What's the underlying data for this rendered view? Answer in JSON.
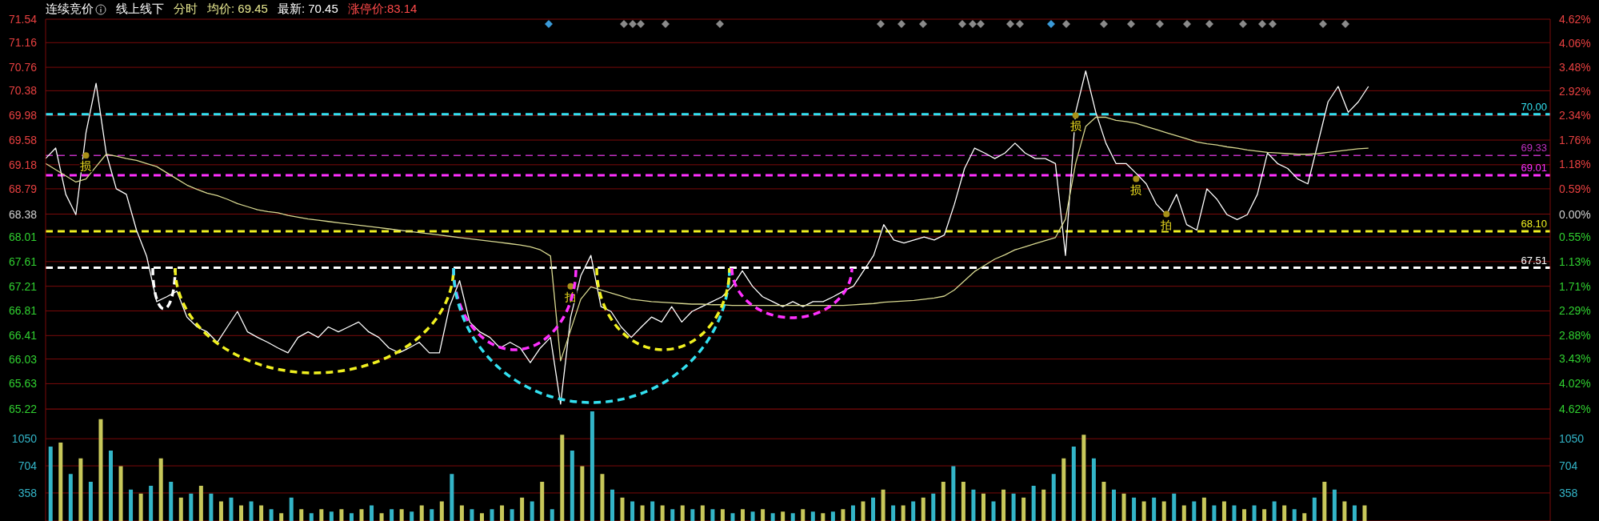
{
  "chart_data": [
    {
      "type": "line",
      "title": "连续竞价",
      "annotations": [
        "线上线下",
        "分时",
        "均价: 69.45",
        "最新: 70.45",
        "涨停价:83.14",
        {
          "text": "损",
          "y": 69.33
        },
        {
          "text": "拍",
          "y": 67.21
        },
        {
          "text": "损",
          "y": 69.98
        },
        {
          "text": "损",
          "y": 68.95
        },
        {
          "text": "拍",
          "y": 68.38
        }
      ],
      "categories": [
        null,
        null,
        null,
        null,
        null,
        null,
        null,
        null,
        null,
        null,
        null,
        null,
        null,
        null,
        null,
        null,
        null,
        null,
        null,
        null,
        null,
        null,
        null,
        null,
        null,
        null,
        null,
        null,
        null,
        null,
        null,
        null,
        null,
        null,
        null,
        null,
        null,
        null,
        null,
        null,
        null,
        null,
        null,
        null,
        null,
        null,
        null,
        null,
        null,
        null,
        null,
        null,
        null,
        null,
        null,
        null,
        null,
        null,
        null,
        null,
        null,
        null,
        null,
        null,
        null,
        null,
        null,
        null,
        null,
        null,
        null,
        null,
        null,
        null,
        null,
        null,
        null,
        null,
        null,
        null,
        null,
        null,
        null,
        null,
        null,
        null,
        null,
        null,
        null,
        null,
        null,
        null,
        null,
        null,
        null,
        null,
        null,
        null,
        null,
        null,
        null,
        null,
        null,
        null,
        null,
        null,
        null,
        null,
        null,
        null,
        null,
        null,
        null,
        null,
        null,
        null,
        null,
        null,
        null,
        null,
        null,
        null,
        null,
        null,
        null,
        null,
        null,
        null,
        null,
        null,
        null,
        null,
        null,
        null,
        null,
        null,
        null,
        null,
        null,
        null,
        null,
        null,
        null,
        null,
        null,
        null,
        null,
        null,
        null,
        null
      ],
      "series": [
        {
          "color": "#ffffff",
          "values": [
            69.28,
            69.45,
            68.7,
            68.37,
            69.7,
            70.5,
            69.37,
            68.79,
            68.7,
            68.12,
            67.7,
            66.96,
            67.04,
            67.13,
            66.71,
            66.55,
            66.47,
            66.3,
            66.55,
            66.8,
            66.47,
            66.38,
            66.3,
            66.21,
            66.13,
            66.38,
            66.47,
            66.38,
            66.55,
            66.47,
            66.55,
            66.63,
            66.47,
            66.38,
            66.21,
            66.13,
            66.21,
            66.3,
            66.13,
            66.13,
            66.88,
            67.3,
            66.63,
            66.47,
            66.38,
            66.21,
            66.3,
            66.21,
            65.97,
            66.21,
            66.38,
            65.3,
            66.71,
            67.38,
            67.71,
            66.88,
            66.8,
            66.55,
            66.38,
            66.55,
            66.71,
            66.63,
            66.88,
            66.63,
            66.8,
            66.88,
            66.96,
            67.04,
            67.21,
            67.46,
            67.21,
            67.04,
            66.96,
            66.88,
            66.96,
            66.88,
            66.96,
            66.96,
            67.04,
            67.13,
            67.21,
            67.46,
            67.71,
            68.21,
            67.96,
            67.91,
            67.96,
            68.01,
            67.96,
            68.04,
            68.54,
            69.12,
            69.45,
            69.37,
            69.28,
            69.37,
            69.53,
            69.37,
            69.28,
            69.28,
            69.2,
            67.71,
            70.03,
            70.7,
            70.03,
            69.53,
            69.2,
            69.2,
            69.04,
            68.87,
            68.54,
            68.37,
            68.7,
            68.21,
            68.12,
            68.79,
            68.62,
            68.37,
            68.29,
            68.37,
            68.7,
            69.37,
            69.2,
            69.12,
            68.95,
            68.87,
            69.53,
            70.2,
            70.45,
            70.03,
            70.2,
            70.45,
            null,
            null,
            null,
            null,
            null,
            null,
            null,
            null,
            null,
            null,
            null,
            null,
            null,
            null,
            null,
            null,
            null,
            null
          ]
        },
        {
          "color": "#d8d890",
          "values": [
            69.2,
            69.1,
            69.0,
            68.9,
            68.95,
            69.15,
            69.35,
            69.32,
            69.28,
            69.25,
            69.2,
            69.15,
            69.05,
            68.95,
            68.85,
            68.78,
            68.72,
            68.68,
            68.62,
            68.55,
            68.5,
            68.45,
            68.42,
            68.4,
            68.36,
            68.33,
            68.3,
            68.28,
            68.26,
            68.24,
            68.22,
            68.2,
            68.18,
            68.16,
            68.14,
            68.12,
            68.1,
            68.08,
            68.06,
            68.04,
            68.02,
            68.0,
            67.98,
            67.96,
            67.94,
            67.92,
            67.9,
            67.88,
            67.85,
            67.8,
            67.7,
            66.0,
            66.5,
            67.0,
            67.2,
            67.15,
            67.1,
            67.05,
            67.0,
            66.98,
            66.96,
            66.95,
            66.94,
            66.93,
            66.92,
            66.92,
            66.91,
            66.91,
            66.9,
            66.9,
            66.9,
            66.9,
            66.9,
            66.9,
            66.9,
            66.9,
            66.9,
            66.9,
            66.9,
            66.9,
            66.91,
            66.92,
            66.93,
            66.95,
            66.96,
            66.97,
            66.98,
            67.0,
            67.02,
            67.05,
            67.15,
            67.3,
            67.45,
            67.55,
            67.65,
            67.72,
            67.8,
            67.85,
            67.9,
            67.95,
            68.0,
            68.3,
            69.2,
            69.8,
            69.95,
            69.95,
            69.9,
            69.88,
            69.85,
            69.8,
            69.75,
            69.7,
            69.65,
            69.6,
            69.55,
            69.52,
            69.5,
            69.47,
            69.45,
            69.42,
            69.4,
            69.38,
            69.37,
            69.36,
            69.35,
            69.35,
            69.36,
            69.38,
            69.4,
            69.42,
            69.44,
            69.45,
            null,
            null,
            null,
            null,
            null,
            null,
            null,
            null,
            null,
            null,
            null,
            null,
            null,
            null,
            null,
            null,
            null,
            null
          ]
        }
      ],
      "ylim": [
        65.22,
        71.54
      ],
      "yticks": [
        65.22,
        65.63,
        66.03,
        66.41,
        66.81,
        67.21,
        67.61,
        68.01,
        68.38,
        68.79,
        69.18,
        69.58,
        69.98,
        70.38,
        70.76,
        71.16,
        71.54
      ],
      "y2lim": [
        -4.62,
        4.62
      ],
      "y2ticks": [
        {
          "value": -4.62,
          "label": "4.62%"
        },
        {
          "value": -4.02,
          "label": "4.02%"
        },
        {
          "value": -3.43,
          "label": "3.43%"
        },
        {
          "value": -2.88,
          "label": "2.88%"
        },
        {
          "value": -2.29,
          "label": "2.29%"
        },
        {
          "value": -1.71,
          "label": "1.71%"
        },
        {
          "value": -1.13,
          "label": "1.13%"
        },
        {
          "value": -0.55,
          "label": "0.55%"
        },
        {
          "value": 0,
          "label": "0.00%"
        },
        {
          "value": 0.59,
          "label": "0.59%"
        },
        {
          "value": 1.18,
          "label": "1.18%"
        },
        {
          "value": 1.76,
          "label": "1.76%"
        },
        {
          "value": 2.34,
          "label": "2.34%"
        },
        {
          "value": 2.92,
          "label": "2.92%"
        },
        {
          "value": 3.48,
          "label": "3.48%"
        },
        {
          "value": 4.06,
          "label": "4.06%"
        },
        {
          "value": 4.62,
          "label": "4.62%"
        }
      ],
      "ref_lines": [
        {
          "axis": "y",
          "value": 70.0,
          "label": "70.00",
          "color": "#33e0f0",
          "line_style": "dashed"
        },
        {
          "axis": "y",
          "value": 69.33,
          "label": "69.33",
          "color": "#c030c0",
          "line_style": "dashed"
        },
        {
          "axis": "y",
          "value": 69.01,
          "label": "69.01",
          "color": "#ff30ff",
          "line_style": "dashed"
        },
        {
          "axis": "y",
          "value": 68.1,
          "label": "68.10",
          "color": "#f0f020",
          "line_style": "dashed"
        },
        {
          "axis": "y",
          "value": 67.51,
          "label": "67.51",
          "color": "#ffffff",
          "line_style": "dashed"
        }
      ],
      "grid": "y"
    },
    {
      "type": "bar",
      "categories": [
        null,
        null,
        null,
        null,
        null,
        null,
        null,
        null,
        null,
        null,
        null,
        null,
        null,
        null,
        null,
        null,
        null,
        null,
        null,
        null,
        null,
        null,
        null,
        null,
        null,
        null,
        null,
        null,
        null,
        null,
        null,
        null,
        null,
        null,
        null,
        null,
        null,
        null,
        null,
        null,
        null,
        null,
        null,
        null,
        null,
        null,
        null,
        null,
        null,
        null,
        null,
        null,
        null,
        null,
        null,
        null,
        null,
        null,
        null,
        null,
        null,
        null,
        null,
        null,
        null,
        null,
        null,
        null,
        null,
        null,
        null,
        null,
        null,
        null,
        null,
        null,
        null,
        null,
        null,
        null,
        null,
        null,
        null,
        null,
        null,
        null,
        null,
        null,
        null,
        null,
        null,
        null,
        null,
        null,
        null,
        null,
        null,
        null,
        null,
        null,
        null,
        null,
        null,
        null,
        null,
        null,
        null,
        null,
        null,
        null,
        null,
        null,
        null,
        null,
        null,
        null,
        null,
        null,
        null,
        null,
        null,
        null,
        null,
        null,
        null,
        null,
        null,
        null,
        null,
        null,
        null,
        null,
        null,
        null,
        null,
        null,
        null,
        null,
        null,
        null,
        null,
        null,
        null,
        null,
        null,
        null,
        null,
        null,
        null,
        null
      ],
      "values": [
        950,
        1000,
        600,
        800,
        500,
        1300,
        900,
        700,
        400,
        350,
        450,
        800,
        500,
        300,
        350,
        450,
        350,
        250,
        300,
        200,
        250,
        200,
        150,
        100,
        300,
        150,
        100,
        150,
        120,
        150,
        100,
        150,
        200,
        100,
        150,
        150,
        120,
        200,
        150,
        250,
        600,
        200,
        150,
        100,
        150,
        200,
        150,
        300,
        250,
        500,
        150,
        1100,
        900,
        700,
        1400,
        600,
        400,
        300,
        250,
        200,
        250,
        200,
        150,
        200,
        150,
        200,
        150,
        150,
        100,
        150,
        120,
        150,
        100,
        120,
        100,
        150,
        120,
        100,
        120,
        150,
        200,
        250,
        300,
        400,
        200,
        200,
        250,
        300,
        350,
        500,
        700,
        500,
        400,
        350,
        250,
        400,
        350,
        300,
        450,
        400,
        600,
        800,
        950,
        1100,
        800,
        500,
        400,
        350,
        300,
        250,
        300,
        250,
        350,
        200,
        250,
        300,
        200,
        250,
        200,
        150,
        200,
        150,
        250,
        200,
        150,
        100,
        300,
        500,
        400,
        250,
        200,
        200,
        null,
        null,
        null,
        null,
        null,
        null,
        null,
        null,
        null,
        null,
        null,
        null,
        null,
        null,
        null,
        null,
        null,
        null
      ],
      "colors": [
        "#33b5c8",
        "#c8c85a",
        "#33b5c8",
        "#c8c85a",
        "#33b5c8",
        "#c8c85a",
        "#33b5c8",
        "#c8c85a",
        "#33b5c8",
        "#c8c85a",
        "#33b5c8",
        "#c8c85a",
        "#33b5c8",
        "#c8c85a",
        "#33b5c8",
        "#c8c85a",
        "#33b5c8",
        "#c8c85a",
        "#33b5c8",
        "#c8c85a",
        "#33b5c8",
        "#c8c85a",
        "#33b5c8",
        "#c8c85a",
        "#33b5c8",
        "#c8c85a",
        "#33b5c8",
        "#c8c85a",
        "#33b5c8",
        "#c8c85a",
        "#33b5c8",
        "#c8c85a",
        "#33b5c8",
        "#c8c85a",
        "#33b5c8",
        "#c8c85a",
        "#33b5c8",
        "#c8c85a",
        "#33b5c8",
        "#c8c85a",
        "#33b5c8",
        "#c8c85a",
        "#33b5c8",
        "#c8c85a",
        "#33b5c8",
        "#c8c85a",
        "#33b5c8",
        "#c8c85a",
        "#33b5c8",
        "#c8c85a",
        "#33b5c8",
        "#c8c85a",
        "#33b5c8",
        "#c8c85a",
        "#33b5c8",
        "#c8c85a",
        "#33b5c8",
        "#c8c85a",
        "#33b5c8",
        "#c8c85a",
        "#33b5c8",
        "#c8c85a",
        "#33b5c8",
        "#c8c85a",
        "#33b5c8",
        "#c8c85a",
        "#33b5c8",
        "#c8c85a",
        "#33b5c8",
        "#c8c85a",
        "#33b5c8",
        "#c8c85a",
        "#33b5c8",
        "#c8c85a",
        "#33b5c8",
        "#c8c85a",
        "#33b5c8",
        "#c8c85a",
        "#33b5c8",
        "#c8c85a",
        "#33b5c8",
        "#c8c85a",
        "#33b5c8",
        "#c8c85a",
        "#33b5c8",
        "#c8c85a",
        "#33b5c8",
        "#c8c85a",
        "#33b5c8",
        "#c8c85a",
        "#33b5c8",
        "#c8c85a",
        "#33b5c8",
        "#c8c85a",
        "#33b5c8",
        "#c8c85a",
        "#33b5c8",
        "#c8c85a",
        "#33b5c8",
        "#c8c85a",
        "#33b5c8",
        "#c8c85a",
        "#33b5c8",
        "#c8c85a",
        "#33b5c8",
        "#c8c85a",
        "#33b5c8",
        "#c8c85a",
        "#33b5c8",
        "#c8c85a",
        "#33b5c8",
        "#c8c85a",
        "#33b5c8",
        "#c8c85a",
        "#33b5c8",
        "#c8c85a",
        "#33b5c8",
        "#c8c85a",
        "#33b5c8",
        "#c8c85a",
        "#33b5c8",
        "#c8c85a",
        "#33b5c8",
        "#c8c85a",
        "#33b5c8",
        "#c8c85a",
        "#33b5c8",
        "#c8c85a",
        "#33b5c8",
        "#c8c85a",
        "#33b5c8",
        "#c8c85a",
        null,
        null,
        null,
        null,
        null,
        null,
        null,
        null,
        null,
        null,
        null,
        null,
        null,
        null,
        null,
        null,
        null,
        null
      ],
      "ylim": [
        0,
        1430
      ],
      "yticks": [
        358,
        704,
        1050
      ],
      "y2lim": [
        0,
        1430
      ],
      "y2ticks": [
        358,
        704,
        1050
      ],
      "grid": "y"
    }
  ]
}
